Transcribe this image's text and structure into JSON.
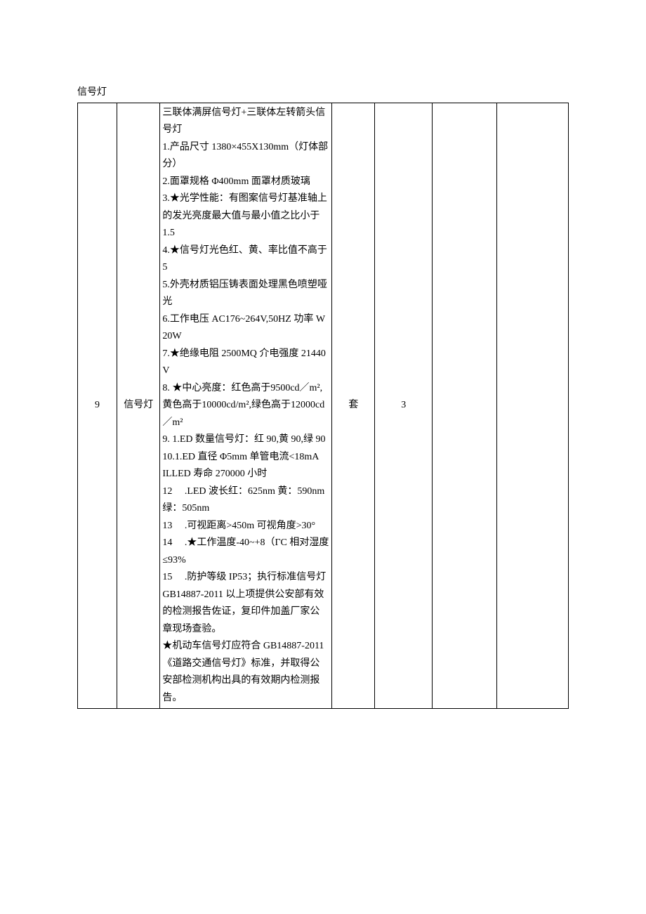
{
  "header": "信号灯",
  "table": {
    "row": {
      "num": "9",
      "name": "信号灯",
      "unit": "套",
      "qty": "3",
      "spec_lines": [
        "三联体满屏信号灯+三联体左转箭头信号灯",
        "1.产品尺寸 1380×455X130mm（灯体部分）",
        "2.面罩规格 Φ400mm 面罩材质玻璃",
        "3.★光学性能：有图案信号灯基准轴上的发光亮度最大值与最小值之比小于 1.5",
        "4.★信号灯光色红、黄、率比值不高于 5",
        "5.外壳材质铝压铸表面处理黑色喷塑哑光",
        "6.工作电压 AC176~264V,50HZ 功率 W20W",
        "7.★绝缘电阻 2500MQ 介电强度 21440V",
        "8. ★中心亮度：红色高于9500cd／m²,黄色高于10000cd/m²,绿色高于12000cd／m²",
        "9. 1.ED 数量信号灯：红 90,黄 90,绿 90",
        "10.1.ED 直径 Φ5mm 单管电流<18mA",
        "ILLED 寿命 270000 小时",
        "12     .LED 波长红：625nm 黄：590nm 绿：505nm",
        "13     .可视距离>450m 可视角度>30°",
        "14     .★工作温度-40~+8（ΓC 相对湿度≤93%",
        "15     .防护等级 IP53；执行标准信号灯 GB14887-2011 以上项提供公安部有效的检测报告佐证，复印件加盖厂家公章现场查验。",
        "★机动车信号灯应符合 GB14887-2011《道路交通信号灯》标准，并取得公安部检测机构出具的有效期内检测报告。"
      ]
    }
  }
}
